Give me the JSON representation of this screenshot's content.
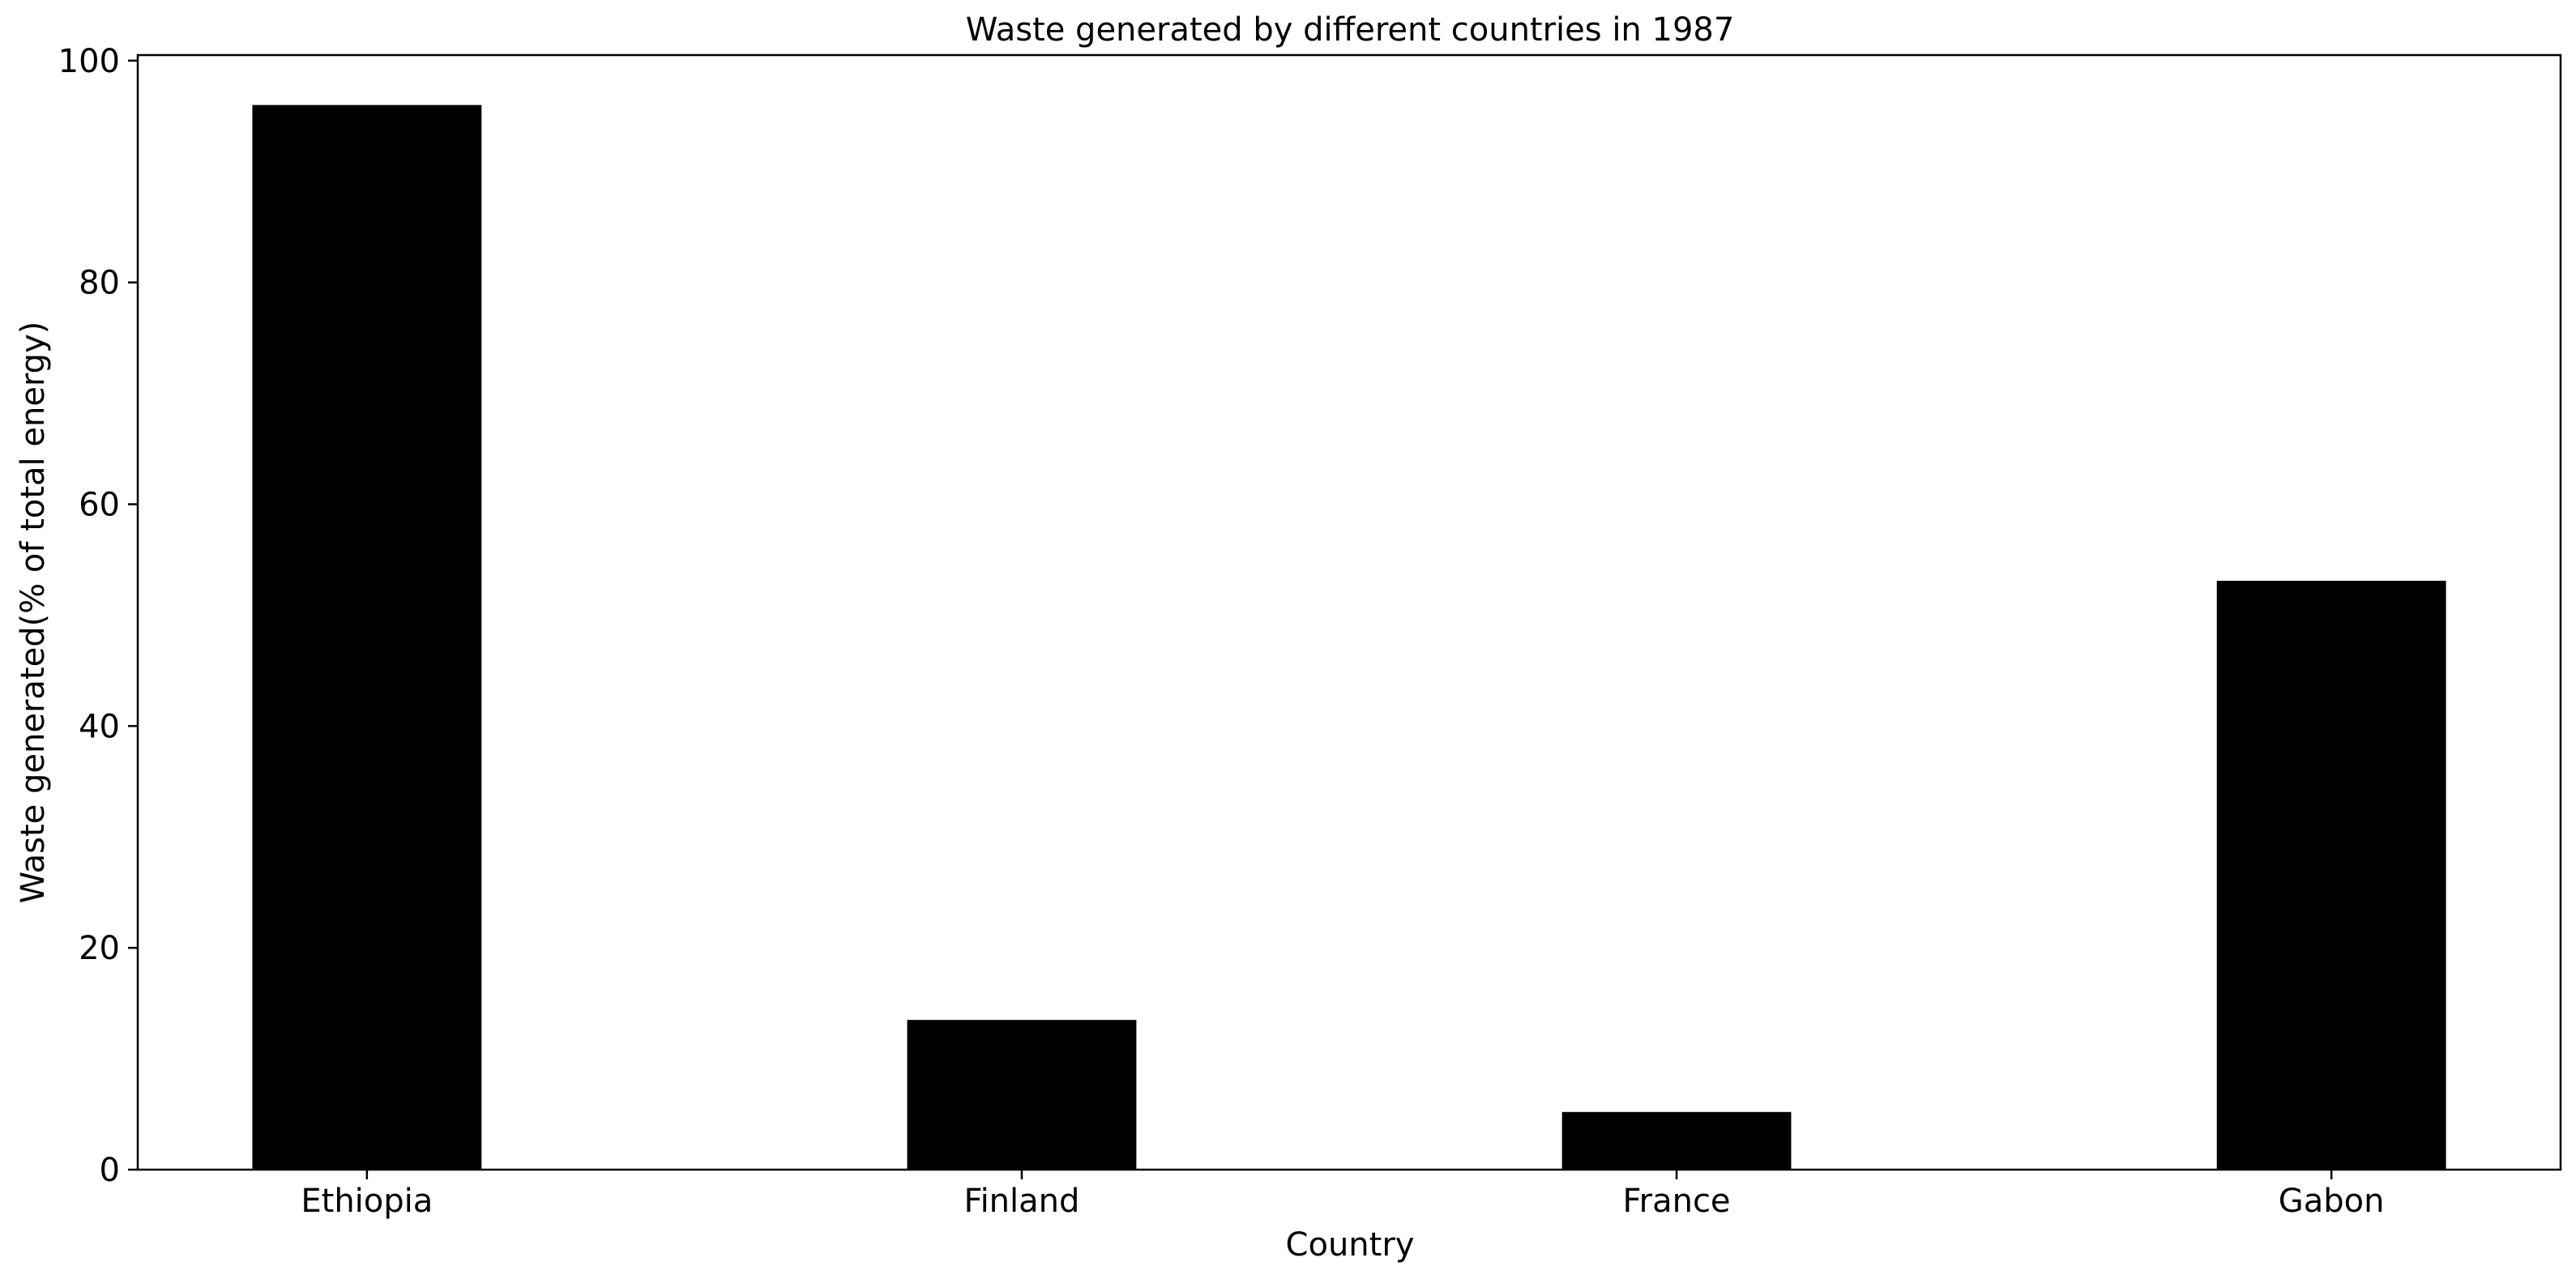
{
  "chart_data": {
    "type": "bar",
    "title": "Waste generated by different countries in 1987",
    "xlabel": "Country",
    "ylabel": "Waste generated(% of total energy)",
    "categories": [
      "Ethiopia",
      "Finland",
      "France",
      "Gabon"
    ],
    "values": [
      96.0,
      13.5,
      5.2,
      53.1
    ],
    "ylim": [
      0,
      100.5
    ],
    "yticks": [
      0,
      20,
      40,
      60,
      80,
      100
    ],
    "grid": false,
    "legend": "none",
    "bar_color": "#000000"
  }
}
